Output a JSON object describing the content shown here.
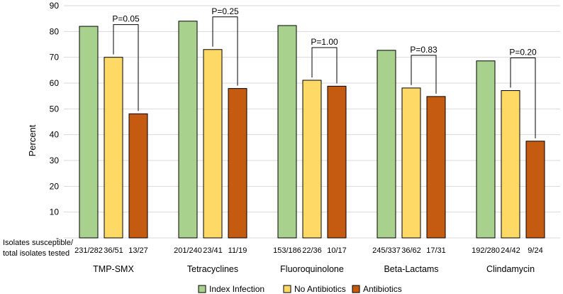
{
  "chart_data": {
    "type": "bar",
    "ylabel": "Percent",
    "ylim": [
      0,
      90
    ],
    "yticks": [
      0,
      10,
      20,
      30,
      40,
      50,
      60,
      70,
      80,
      90
    ],
    "ytick_labels": [
      "-",
      "10",
      "20",
      "30",
      "40",
      "50",
      "60",
      "70",
      "80",
      "90"
    ],
    "grid": true,
    "categories": [
      "TMP-SMX",
      "Tetracyclines",
      "Fluoroquinolone",
      "Beta-Lactams",
      "Clindamycin"
    ],
    "count_row_label": [
      "Isolates susceptible/",
      "total isolates tested"
    ],
    "series": [
      {
        "name": "Index Infection",
        "color": "#A9D18E",
        "values": [
          82,
          84,
          82.3,
          72.7,
          68.6
        ],
        "counts": [
          "231/282",
          "201/240",
          "153/186",
          "245/337",
          "192/280"
        ]
      },
      {
        "name": "No Antibiotics",
        "color": "#FFD966",
        "values": [
          70.0,
          73.0,
          61.1,
          58.1,
          57.1
        ],
        "counts": [
          "36/51",
          "23/41",
          "22/36",
          "36/62",
          "24/42"
        ]
      },
      {
        "name": "Antibiotics",
        "color": "#C55A11",
        "values": [
          48.1,
          57.9,
          58.8,
          54.8,
          37.5
        ],
        "counts": [
          "13/27",
          "11/19",
          "10/17",
          "17/31",
          "9/24"
        ]
      }
    ],
    "annotations": [
      "P=0.05",
      "P=0.25",
      "P=1.00",
      "P=0.83",
      "P=0.20"
    ],
    "legend_position": "bottom"
  }
}
